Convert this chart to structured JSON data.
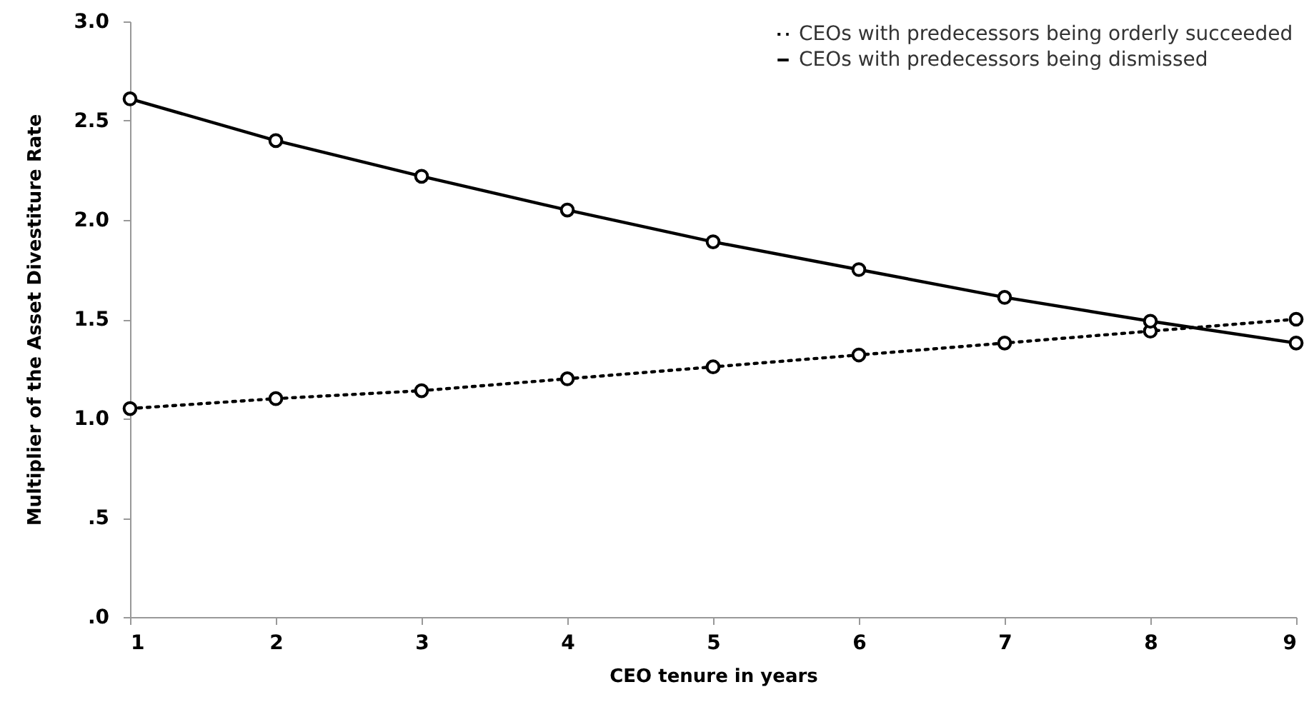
{
  "chart_data": {
    "type": "line",
    "xlabel": "CEO tenure in years",
    "ylabel": "Multiplier of the Asset Divestiture Rate",
    "x": [
      1,
      2,
      3,
      4,
      5,
      6,
      7,
      8,
      9
    ],
    "series": [
      {
        "name": "CEOs with predecessors being orderly succeeded",
        "color": "#000000",
        "line_style": "dotted",
        "values": [
          1.05,
          1.1,
          1.14,
          1.2,
          1.26,
          1.32,
          1.38,
          1.44,
          1.5
        ]
      },
      {
        "name": "CEOs with predecessors being dismissed",
        "color": "#000000",
        "line_style": "solid",
        "values": [
          2.61,
          2.4,
          2.22,
          2.05,
          1.89,
          1.75,
          1.61,
          1.49,
          1.38
        ]
      }
    ],
    "xlim": [
      1,
      9
    ],
    "xticks": [
      1,
      2,
      3,
      4,
      5,
      6,
      7,
      8,
      9
    ],
    "ylim": [
      0,
      3
    ],
    "yticks": [
      {
        "value": 0,
        "label": ".0"
      },
      {
        "value": 0.5,
        "label": ".5"
      },
      {
        "value": 1,
        "label": "1.0"
      },
      {
        "value": 1.5,
        "label": "1.5"
      },
      {
        "value": 2,
        "label": "2.0"
      },
      {
        "value": 2.5,
        "label": "2.5"
      },
      {
        "value": 3,
        "label": "3.0"
      }
    ],
    "grid": false,
    "legend": "top right",
    "marker": "circle"
  }
}
